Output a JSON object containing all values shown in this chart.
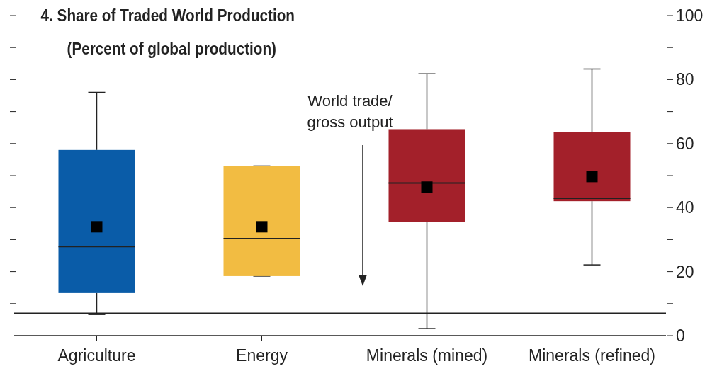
{
  "chart_data": {
    "type": "box",
    "title": "4. Share of Traded World Production",
    "subtitle": "(Percent of global production)",
    "categories": [
      "Agriculture",
      "Energy",
      "Minerals (mined)",
      "Minerals (refined)"
    ],
    "colors": [
      "#0a5ca8",
      "#f2bc42",
      "#a3202a",
      "#a3202a"
    ],
    "boxes": [
      {
        "low": 6.6,
        "q1": 13.3,
        "median": 27.8,
        "q3": 58,
        "high": 76,
        "mean": 34
      },
      {
        "low": 18.6,
        "q1": 18.6,
        "median": 30.3,
        "q3": 53,
        "high": 53,
        "mean": 34
      },
      {
        "low": 2.2,
        "q1": 35.4,
        "median": 47.7,
        "q3": 64.5,
        "high": 81.8,
        "mean": 46.4
      },
      {
        "low": 22.1,
        "q1": 42,
        "median": 42.9,
        "q3": 63.6,
        "high": 83.3,
        "mean": 49.7
      }
    ],
    "ylim": [
      0,
      100
    ],
    "yticks": [
      0,
      {
        "value": 10,
        "label": null
      },
      20,
      {
        "value": 30,
        "label": null
      },
      40,
      {
        "value": 50,
        "label": null
      },
      60,
      {
        "value": 70,
        "label": null
      },
      80,
      {
        "value": 90,
        "label": null
      },
      100
    ],
    "ref_lines": [
      {
        "axis": "y",
        "value": 7,
        "color": "#222222"
      }
    ],
    "annotations": [
      "World trade/\ngross output"
    ],
    "marker": "square"
  }
}
